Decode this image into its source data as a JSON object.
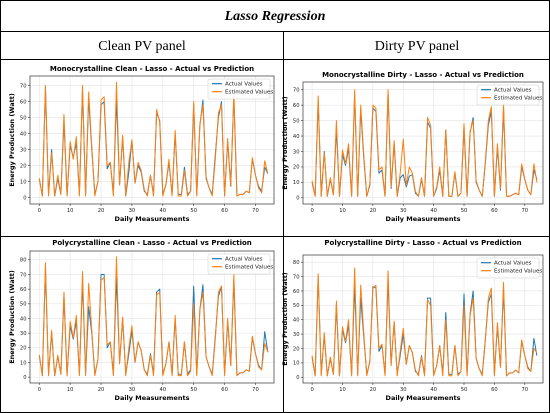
{
  "table": {
    "title": "Lasso Regression",
    "col_left": "Clean PV panel",
    "col_right": "Dirty PV panel"
  },
  "colors": {
    "actual": "#1f77b4",
    "estimated": "#ff7f0e"
  },
  "chart_data": [
    {
      "type": "line",
      "title": "Monocrystalline Clean  - Lasso - Actual vs Prediction",
      "xlabel": "Daily Measurements",
      "ylabel": "Energy Production (Watt)",
      "xlim": [
        -3,
        76
      ],
      "ylim": [
        -4,
        76
      ],
      "xticks": [
        0,
        10,
        20,
        30,
        40,
        50,
        60,
        70
      ],
      "yticks": [
        0,
        10,
        20,
        30,
        40,
        50,
        60,
        70
      ],
      "legend": "top-right",
      "series": [
        {
          "name": "Actual Values",
          "values": [
            12,
            1,
            69,
            2,
            30,
            1,
            12,
            2,
            48,
            1,
            33,
            25,
            34,
            2,
            68,
            2,
            62,
            30,
            2,
            10,
            58,
            60,
            18,
            22,
            2,
            62,
            8,
            38,
            1,
            16,
            36,
            9,
            20,
            16,
            4,
            2,
            14,
            2,
            53,
            48,
            2,
            8,
            22,
            2,
            40,
            2,
            2,
            19,
            2,
            4,
            58,
            2,
            45,
            61,
            12,
            6,
            2,
            27,
            50,
            60,
            1,
            35,
            7,
            64,
            1,
            2,
            2,
            4,
            3,
            24,
            14,
            7,
            4,
            19,
            15
          ]
        },
        {
          "name": "Estimated Values",
          "values": [
            12,
            1,
            70,
            1,
            28,
            1,
            14,
            2,
            52,
            1,
            35,
            24,
            38,
            1,
            70,
            1,
            66,
            32,
            1,
            10,
            61,
            63,
            20,
            22,
            1,
            72,
            8,
            39,
            1,
            22,
            36,
            9,
            22,
            17,
            5,
            1,
            14,
            1,
            55,
            47,
            1,
            8,
            24,
            1,
            42,
            1,
            1,
            17,
            1,
            4,
            60,
            1,
            46,
            58,
            13,
            6,
            1,
            24,
            53,
            58,
            1,
            37,
            7,
            65,
            1,
            2,
            2,
            4,
            3,
            25,
            14,
            6,
            3,
            23,
            15
          ]
        }
      ]
    },
    {
      "type": "line",
      "title": "Monocrystalline Dirty - Lasso - Actual vs Prediction",
      "xlabel": "Daily Measurements",
      "ylabel": "Energy Production (Watt)",
      "xlim": [
        -3,
        76
      ],
      "ylim": [
        -4,
        75
      ],
      "xticks": [
        0,
        10,
        20,
        30,
        40,
        50,
        60,
        70
      ],
      "yticks": [
        0,
        10,
        20,
        30,
        40,
        50,
        60,
        70
      ],
      "legend": "top-right",
      "series": [
        {
          "name": "Actual Values",
          "values": [
            10,
            1,
            63,
            1,
            30,
            1,
            12,
            2,
            45,
            1,
            28,
            21,
            32,
            1,
            67,
            1,
            57,
            26,
            1,
            8,
            58,
            56,
            16,
            18,
            1,
            68,
            6,
            35,
            1,
            13,
            15,
            7,
            14,
            15,
            3,
            1,
            12,
            1,
            49,
            45,
            1,
            6,
            18,
            1,
            44,
            1,
            1,
            16,
            1,
            3,
            46,
            1,
            42,
            52,
            10,
            5,
            1,
            22,
            47,
            56,
            1,
            33,
            5,
            58,
            1,
            1,
            2,
            3,
            2,
            20,
            12,
            5,
            2,
            18,
            12
          ]
        },
        {
          "name": "Estimated Values",
          "values": [
            11,
            1,
            66,
            1,
            29,
            1,
            13,
            2,
            50,
            1,
            31,
            22,
            35,
            1,
            70,
            1,
            60,
            28,
            1,
            9,
            60,
            58,
            18,
            20,
            1,
            70,
            7,
            37,
            1,
            16,
            38,
            8,
            20,
            16,
            4,
            1,
            13,
            1,
            52,
            47,
            1,
            7,
            20,
            1,
            44,
            1,
            1,
            17,
            1,
            3,
            48,
            1,
            43,
            50,
            11,
            5,
            1,
            23,
            50,
            59,
            1,
            35,
            6,
            61,
            1,
            1,
            2,
            3,
            2,
            22,
            12,
            5,
            2,
            22,
            10
          ]
        }
      ]
    },
    {
      "type": "line",
      "title": "Polycrystalline Clean - Lasso - Actual vs Prediction",
      "xlabel": "Daily Measurements",
      "ylabel": "Energy Production (Watt)",
      "xlim": [
        -3,
        76
      ],
      "ylim": [
        -4,
        86
      ],
      "xticks": [
        0,
        10,
        20,
        30,
        40,
        50,
        60,
        70
      ],
      "yticks": [
        0,
        10,
        20,
        30,
        40,
        50,
        60,
        70,
        80
      ],
      "legend": "top-right",
      "series": [
        {
          "name": "Actual Values",
          "values": [
            15,
            1,
            74,
            2,
            30,
            1,
            14,
            2,
            55,
            1,
            35,
            26,
            38,
            2,
            66,
            2,
            48,
            30,
            2,
            12,
            70,
            70,
            20,
            24,
            2,
            68,
            10,
            40,
            2,
            16,
            32,
            10,
            24,
            18,
            5,
            2,
            16,
            2,
            58,
            60,
            2,
            9,
            24,
            2,
            40,
            2,
            2,
            24,
            2,
            5,
            62,
            2,
            46,
            63,
            14,
            7,
            2,
            28,
            55,
            62,
            2,
            38,
            8,
            66,
            1,
            3,
            3,
            5,
            4,
            27,
            16,
            8,
            5,
            31,
            17
          ]
        },
        {
          "name": "Estimated Values",
          "values": [
            15,
            1,
            78,
            1,
            32,
            1,
            15,
            2,
            58,
            1,
            38,
            27,
            42,
            1,
            72,
            1,
            64,
            32,
            1,
            12,
            66,
            68,
            22,
            24,
            1,
            82,
            9,
            41,
            1,
            20,
            35,
            10,
            24,
            18,
            5,
            1,
            15,
            1,
            56,
            58,
            1,
            9,
            24,
            1,
            42,
            1,
            1,
            24,
            1,
            4,
            50,
            1,
            46,
            58,
            14,
            7,
            1,
            26,
            58,
            62,
            1,
            40,
            8,
            70,
            1,
            3,
            3,
            5,
            4,
            28,
            16,
            7,
            5,
            23,
            17
          ]
        }
      ]
    },
    {
      "type": "line",
      "title": "Polycrystalline Dirty - Lasso - Actual vs Prediction",
      "xlabel": "Daily Measurements",
      "ylabel": "Energy Production (Watt)",
      "xlim": [
        -3,
        76
      ],
      "ylim": [
        -4,
        85
      ],
      "xticks": [
        0,
        10,
        20,
        30,
        40,
        50,
        60,
        70
      ],
      "yticks": [
        0,
        10,
        20,
        30,
        40,
        50,
        60,
        70,
        80
      ],
      "legend": "top-right",
      "series": [
        {
          "name": "Actual Values",
          "values": [
            14,
            1,
            70,
            2,
            29,
            1,
            13,
            2,
            50,
            1,
            33,
            24,
            36,
            2,
            64,
            2,
            55,
            28,
            2,
            11,
            63,
            62,
            18,
            22,
            2,
            67,
            9,
            38,
            2,
            15,
            30,
            9,
            22,
            17,
            4,
            2,
            15,
            2,
            55,
            55,
            2,
            8,
            22,
            2,
            45,
            2,
            2,
            22,
            2,
            4,
            58,
            2,
            44,
            60,
            13,
            6,
            2,
            26,
            52,
            58,
            2,
            36,
            7,
            62,
            1,
            3,
            3,
            5,
            3,
            25,
            15,
            7,
            4,
            27,
            15
          ]
        },
        {
          "name": "Estimated Values",
          "values": [
            15,
            1,
            72,
            1,
            31,
            1,
            14,
            2,
            53,
            1,
            35,
            25,
            40,
            1,
            76,
            1,
            64,
            31,
            1,
            11,
            62,
            64,
            20,
            23,
            1,
            74,
            8,
            39,
            1,
            18,
            34,
            9,
            22,
            17,
            5,
            1,
            14,
            1,
            54,
            50,
            1,
            8,
            22,
            1,
            40,
            1,
            1,
            22,
            1,
            4,
            50,
            1,
            43,
            55,
            13,
            6,
            1,
            25,
            55,
            62,
            1,
            38,
            7,
            66,
            1,
            3,
            3,
            5,
            3,
            26,
            15,
            6,
            4,
            20,
            17
          ]
        }
      ]
    }
  ]
}
